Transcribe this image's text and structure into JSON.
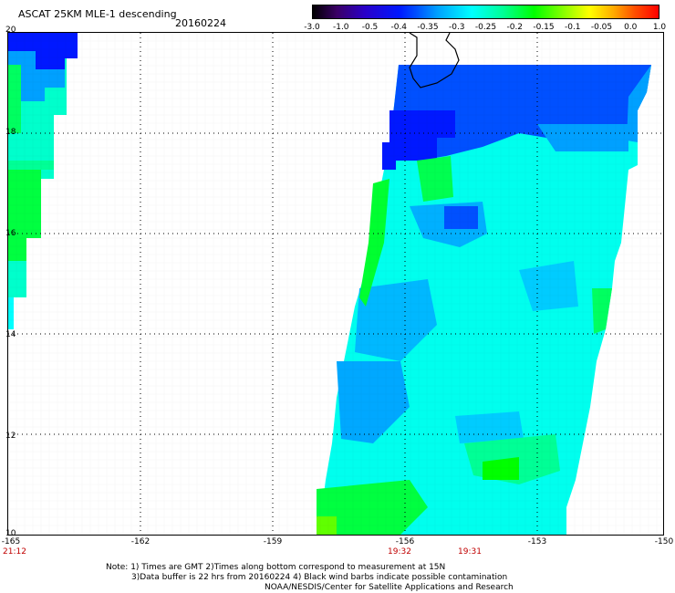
{
  "header": {
    "title": "ASCAT 25KM MLE-1 descending",
    "date": "20160224"
  },
  "colorbar": {
    "labels": [
      "-3.0",
      "-1.0",
      "-0.5",
      "-0.4",
      "-0.35",
      "-0.3",
      "-0.25",
      "-0.2",
      "-0.15",
      "-0.1",
      "-0.05",
      "0.0",
      "1.0"
    ]
  },
  "map": {
    "lat_labels": [
      "20",
      "18",
      "16",
      "14",
      "12",
      "10"
    ],
    "lon_labels": [
      "-165",
      "-162",
      "-159",
      "-156",
      "-153",
      "-150"
    ],
    "time_labels": [
      "21:12",
      "19:32",
      "19:31"
    ],
    "colors": {
      "deep_blue": "#0018ff",
      "blue": "#0050ff",
      "light_blue": "#00a0ff",
      "cyan": "#00ffff",
      "green_cyan": "#00ff96",
      "green": "#00ff00",
      "time_label": "#c00000"
    }
  },
  "notes": {
    "line1": "Note: 1) Times are GMT 2)Times along bottom correspond to measurement at 15N",
    "line2": "3)Data buffer is 22 hrs from 20160224 4) Black wind barbs indicate possible contamination",
    "line3": "NOAA/NESDIS/Center for Satellite Applications and Research"
  }
}
